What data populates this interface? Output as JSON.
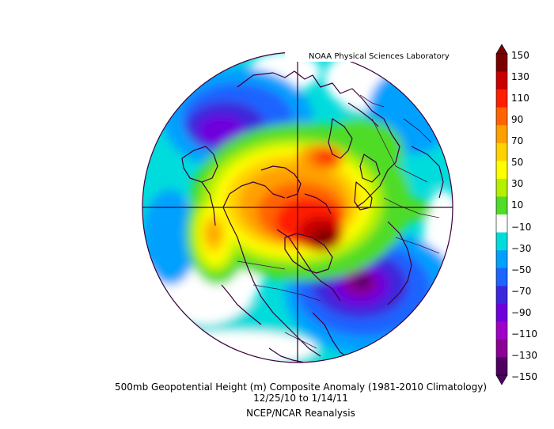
{
  "credit": "NOAA Physical Sciences Laboratory",
  "caption": {
    "line1": "500mb Geopotential Height (m) Composite Anomaly (1981-2010 Climatology)",
    "line2": "12/25/10   to 1/14/11",
    "line3": "NCEP/NCAR Reanalysis"
  },
  "colorbar": {
    "labels": [
      "150",
      "130",
      "110",
      "90",
      "70",
      "50",
      "30",
      "10",
      "−10",
      "−30",
      "−50",
      "−70",
      "−90",
      "−110",
      "−130",
      "−150"
    ],
    "colors": [
      "#7a0000",
      "#c80000",
      "#ff1e00",
      "#ff6400",
      "#ffa000",
      "#ffd200",
      "#ffff00",
      "#b4f000",
      "#50dc28",
      "#ffffff",
      "#00dcdc",
      "#00a0ff",
      "#1e64ff",
      "#3c28dc",
      "#6e00dc",
      "#a000c8",
      "#8c0096",
      "#500060"
    ]
  },
  "icons": {
    "arrow_up": "triangle-up-icon",
    "arrow_down": "triangle-down-icon"
  }
}
